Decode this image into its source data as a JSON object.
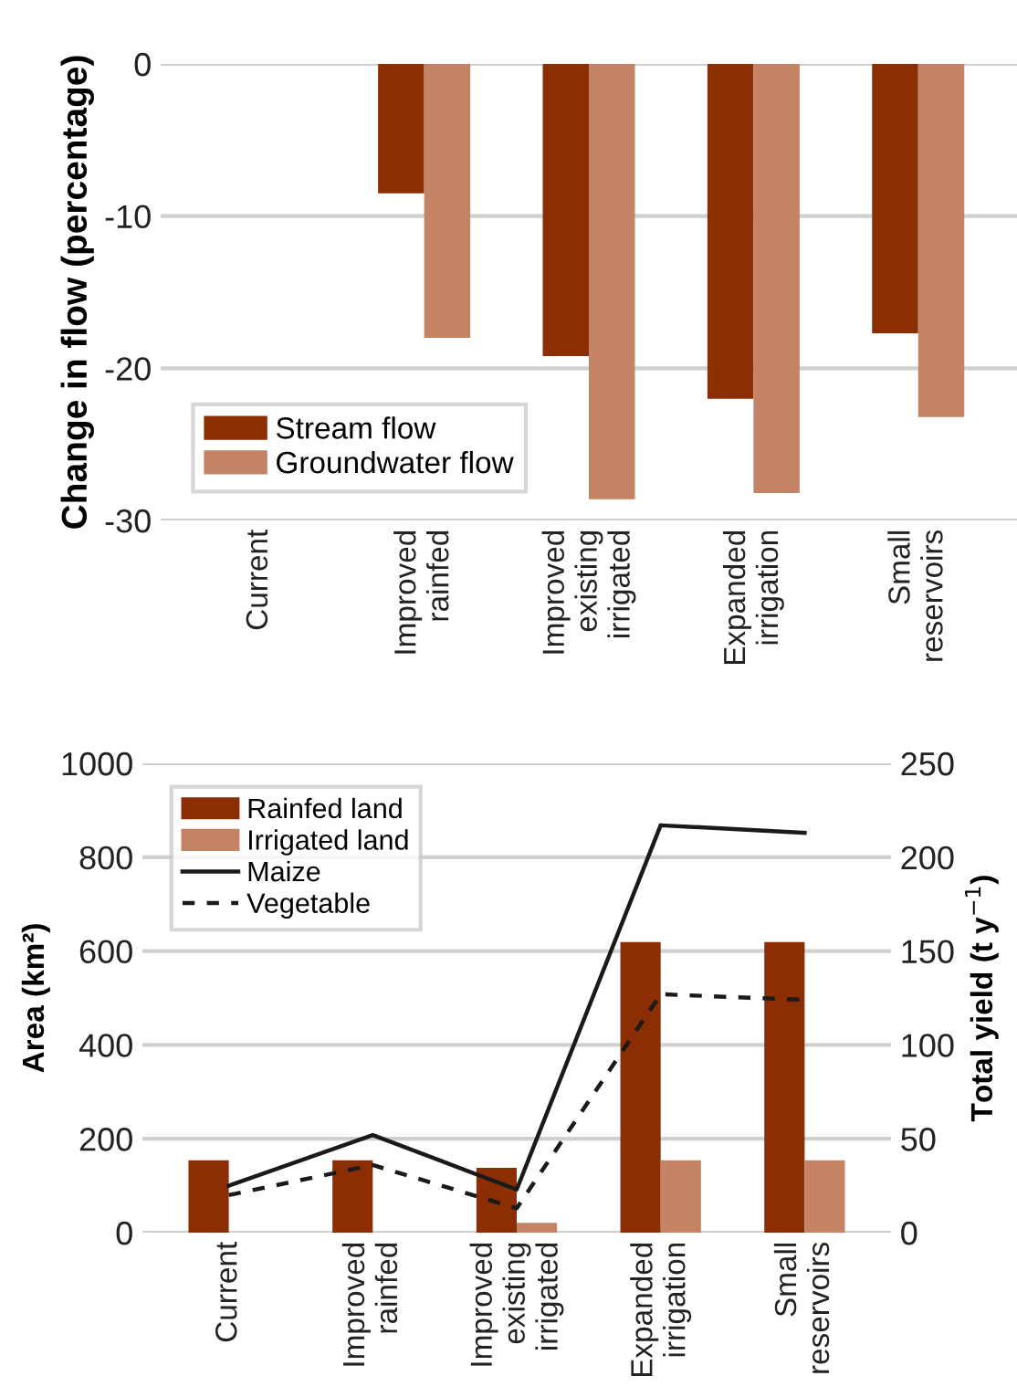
{
  "chart_data": [
    {
      "type": "bar",
      "ylabel": "Change in flow (percentage)",
      "categories": [
        "Current",
        "Improved\nrainfed",
        "Improved\nexisting\nirrigated",
        "Expanded\nirrigation",
        "Small\nreservoirs"
      ],
      "ylim": [
        -30,
        0
      ],
      "yticks": [
        0,
        -10,
        -20,
        -30
      ],
      "grid": "y",
      "legend": "bottom left",
      "series": [
        {
          "name": "Stream flow",
          "color": "#8b2e03",
          "values": [
            null,
            -8.5,
            -19.2,
            -22.0,
            -17.7
          ]
        },
        {
          "name": "Groundwater flow",
          "color": "#c48364",
          "values": [
            null,
            -18.0,
            -28.6,
            -28.2,
            -23.2
          ]
        }
      ]
    },
    {
      "type": "bar",
      "ylabel": "Area (km²)",
      "y2label": "Total yield (t y$^{−1}$)",
      "categories": [
        "Current",
        "Improved\nrainfed",
        "Improved\nexisting\nirrigated",
        "Expanded\nirrigation",
        "Small\nreservoirs"
      ],
      "ylim": [
        0,
        1000
      ],
      "yticks": [
        0,
        200,
        400,
        600,
        800,
        1000
      ],
      "y2lim": [
        0,
        250
      ],
      "y2ticks": [
        0,
        50,
        100,
        150,
        200,
        250
      ],
      "grid": "y",
      "legend": "top left",
      "series": [
        {
          "name": "Rainfed land",
          "color": "#8b2e03",
          "values": [
            154,
            154,
            138,
            619,
            619
          ]
        },
        {
          "name": "Irrigated land",
          "color": "#c48364",
          "values": [
            0,
            0,
            21,
            154,
            154
          ]
        },
        {
          "name": "Maize",
          "type": "line",
          "axis": "y2",
          "color": "#1a1a1a",
          "line_style": "solid",
          "values": [
            25,
            52,
            23,
            217,
            213
          ]
        },
        {
          "name": "Vegetable",
          "type": "line",
          "axis": "y2",
          "color": "#1a1a1a",
          "line_style": "dashed",
          "values": [
            20,
            36,
            13,
            127,
            124
          ]
        }
      ]
    }
  ]
}
